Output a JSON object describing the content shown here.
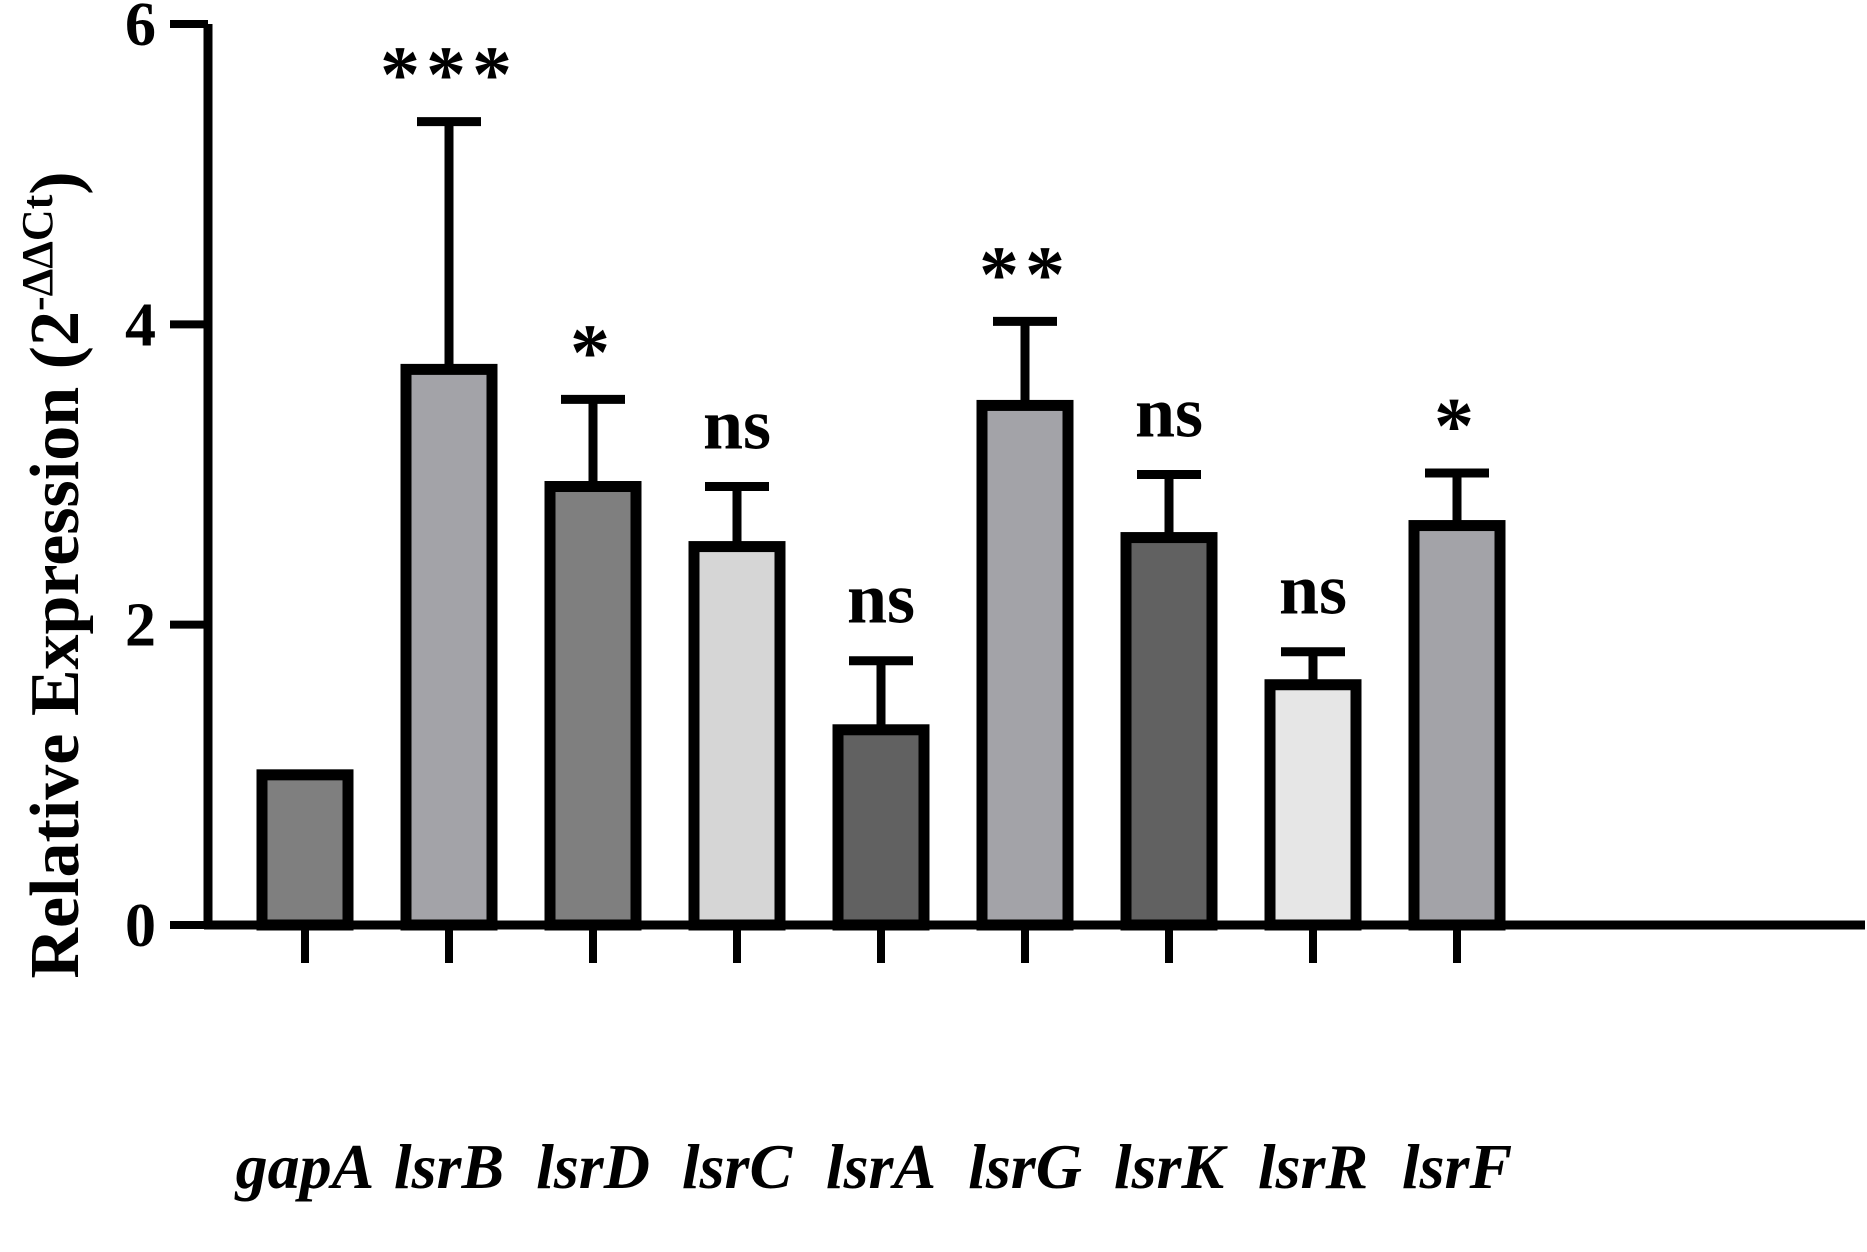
{
  "chart_data": {
    "type": "bar",
    "title": "",
    "xlabel": "",
    "ylabel": "Relative Expression (2",
    "ylabel_superscript": "-ΔΔCt",
    "ylabel_close": ")",
    "ylim": [
      0,
      6
    ],
    "yticks": [
      0,
      2,
      4,
      6
    ],
    "ytick_labels": [
      "0",
      "2",
      "4",
      "6"
    ],
    "grid": false,
    "legend": "none",
    "categories": [
      "gapA",
      "lsrB",
      "lsrD",
      "lsrC",
      "lsrA",
      "lsrG",
      "lsrK",
      "lsrR",
      "lsrF"
    ],
    "values": [
      1.0,
      3.7,
      2.92,
      2.52,
      1.3,
      3.46,
      2.58,
      1.6,
      2.66
    ],
    "error_upper": [
      null,
      5.35,
      3.5,
      2.92,
      1.76,
      4.02,
      3.0,
      1.82,
      3.01
    ],
    "significance": [
      "",
      "***",
      "*",
      "ns",
      "ns",
      "**",
      "ns",
      "ns",
      "*"
    ],
    "bar_colors": [
      "#7f7f7f",
      "#a3a3a8",
      "#7f7f7f",
      "#d6d6d6",
      "#616161",
      "#a3a3a8",
      "#616161",
      "#e6e6e6",
      "#a3a3a8"
    ],
    "outline_color": "#000000"
  }
}
